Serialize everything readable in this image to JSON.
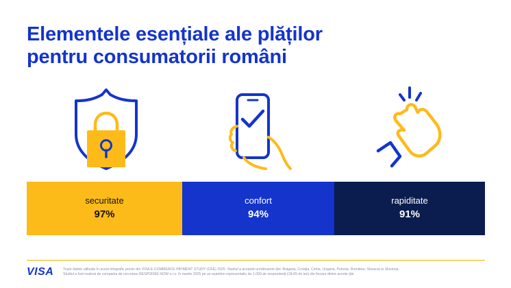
{
  "title_line1": "Elementele esențiale ale plăților",
  "title_line2": "pentru consumatorii români",
  "colors": {
    "accent_blue": "#1434CB",
    "accent_gold": "#F7B600",
    "navy": "#0B1D4E",
    "bar_gold": "#FDBB1A"
  },
  "icons": [
    "shield-lock-icon",
    "phone-check-icon",
    "snap-fingers-icon"
  ],
  "chart_data": {
    "type": "bar",
    "categories": [
      "securitate",
      "confort",
      "rapiditate"
    ],
    "values": [
      97,
      94,
      91
    ],
    "value_labels": [
      "97%",
      "94%",
      "91%"
    ]
  },
  "brand": "VISA",
  "footnote_line1": "Toate datele utilizate în acest infografic provin din VISA E-COMMERCE PAYMENT STUDY (CEE) 2025. Studiul a acoperit următoarele țări: Bulgaria, Croația, Cehia, Ungaria, Polonia, România, Slovacia și Slovenia.",
  "footnote_line2": "Studiul a fost realizat de compania de cercetare RESPONSE NOW s.r.o. în martie 2025 pe un eșantion reprezentativ de 1.000 de respondenți (18-65 de ani) din fiecare dintre aceste țări."
}
